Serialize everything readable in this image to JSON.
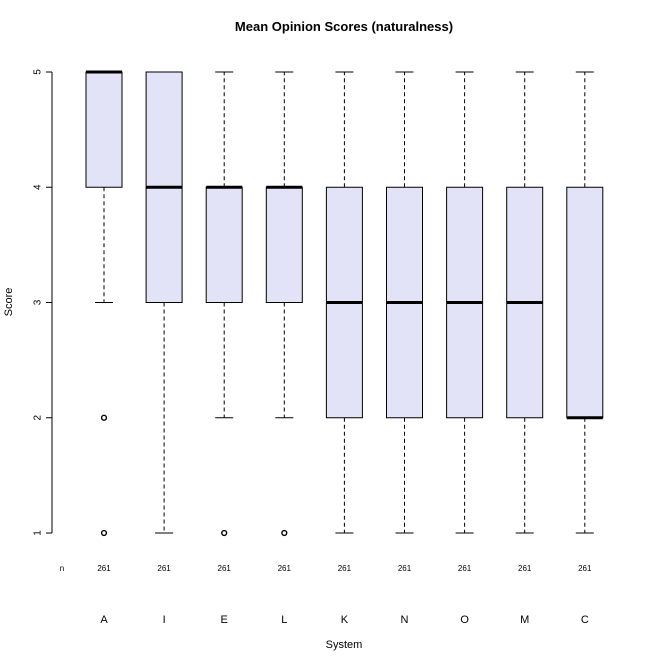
{
  "chart_data": {
    "type": "boxplot",
    "title": "Mean Opinion Scores (naturalness)",
    "xlabel": "System",
    "ylabel": "Score",
    "ylim": [
      1,
      5
    ],
    "yticks": [
      1,
      2,
      3,
      4,
      5
    ],
    "n_label": "n",
    "colors": {
      "box_fill": "#e3e3f7",
      "stroke": "#000000"
    },
    "categories": [
      "A",
      "I",
      "E",
      "L",
      "K",
      "N",
      "O",
      "M",
      "C"
    ],
    "boxes": [
      {
        "category": "A",
        "n": "261",
        "whisker_low": 3,
        "q1": 4,
        "median": 5,
        "q3": 5,
        "whisker_high": 5,
        "outliers": [
          2,
          1
        ]
      },
      {
        "category": "I",
        "n": "261",
        "whisker_low": 1,
        "q1": 3,
        "median": 4,
        "q3": 5,
        "whisker_high": 5,
        "outliers": []
      },
      {
        "category": "E",
        "n": "261",
        "whisker_low": 2,
        "q1": 3,
        "median": 4,
        "q3": 4,
        "whisker_high": 5,
        "outliers": [
          1
        ]
      },
      {
        "category": "L",
        "n": "261",
        "whisker_low": 2,
        "q1": 3,
        "median": 4,
        "q3": 4,
        "whisker_high": 5,
        "outliers": [
          1
        ]
      },
      {
        "category": "K",
        "n": "261",
        "whisker_low": 1,
        "q1": 2,
        "median": 3,
        "q3": 4,
        "whisker_high": 5,
        "outliers": []
      },
      {
        "category": "N",
        "n": "261",
        "whisker_low": 1,
        "q1": 2,
        "median": 3,
        "q3": 4,
        "whisker_high": 5,
        "outliers": []
      },
      {
        "category": "O",
        "n": "261",
        "whisker_low": 1,
        "q1": 2,
        "median": 3,
        "q3": 4,
        "whisker_high": 5,
        "outliers": []
      },
      {
        "category": "M",
        "n": "261",
        "whisker_low": 1,
        "q1": 2,
        "median": 3,
        "q3": 4,
        "whisker_high": 5,
        "outliers": []
      },
      {
        "category": "C",
        "n": "261",
        "whisker_low": 1,
        "q1": 2,
        "median": 2,
        "q3": 4,
        "whisker_high": 5,
        "outliers": []
      }
    ]
  }
}
